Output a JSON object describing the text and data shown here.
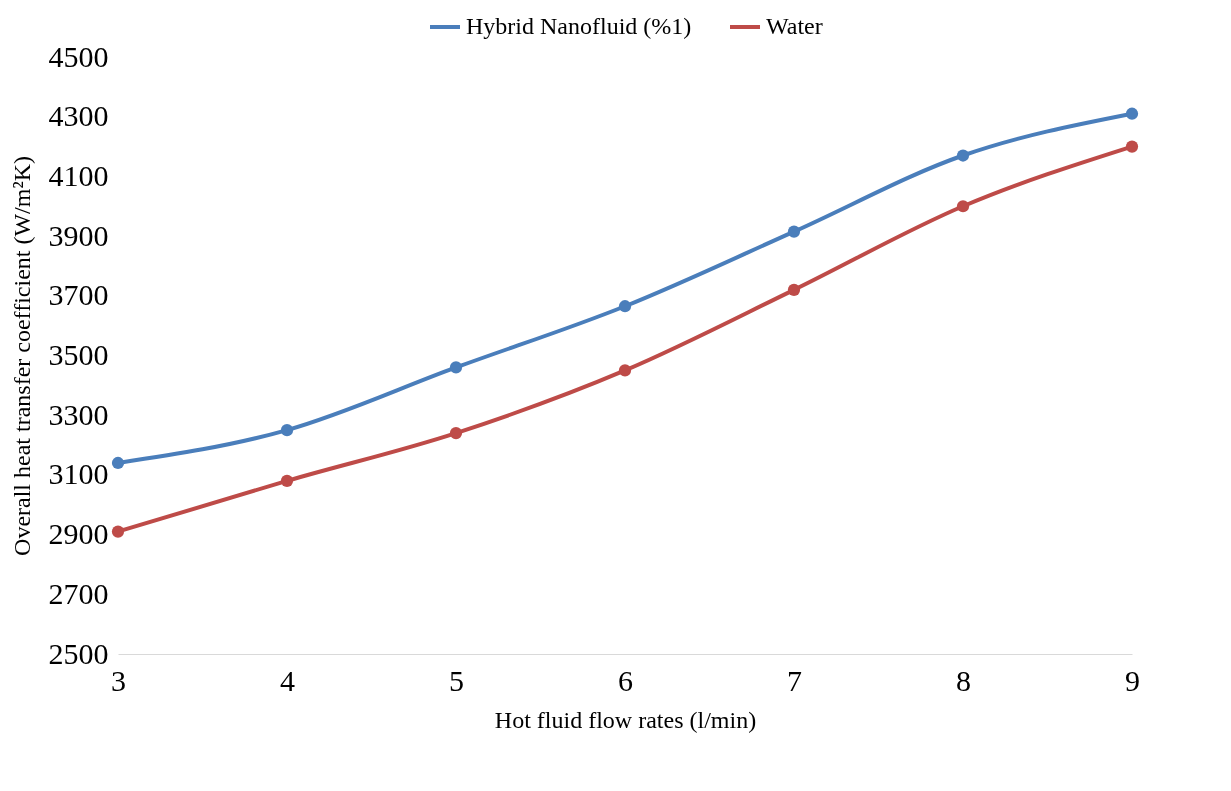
{
  "chart_data": {
    "type": "line",
    "xlabel": "Hot fluid flow rates (l/min)",
    "ylabel": "Overall heat transfer coefficient (W/m²K)",
    "x": [
      3,
      4,
      5,
      6,
      7,
      8,
      9
    ],
    "series": [
      {
        "name": "Hybrid Nanofluid (%1)",
        "color": "#4a7ebb",
        "values": [
          3140,
          3250,
          3460,
          3665,
          3915,
          4170,
          4310
        ]
      },
      {
        "name": "Water",
        "color": "#be4b48",
        "values": [
          2910,
          3080,
          3240,
          3450,
          3720,
          4000,
          4200
        ]
      }
    ],
    "xlim": [
      3,
      9
    ],
    "xticks": [
      3,
      4,
      5,
      6,
      7,
      8,
      9
    ],
    "ylim": [
      2500,
      4500
    ],
    "yticks": [
      2500,
      2700,
      2900,
      3100,
      3300,
      3500,
      3700,
      3900,
      4100,
      4300,
      4500
    ],
    "grid": false,
    "legend": "top",
    "marker": "circle",
    "line_style": "solid"
  }
}
